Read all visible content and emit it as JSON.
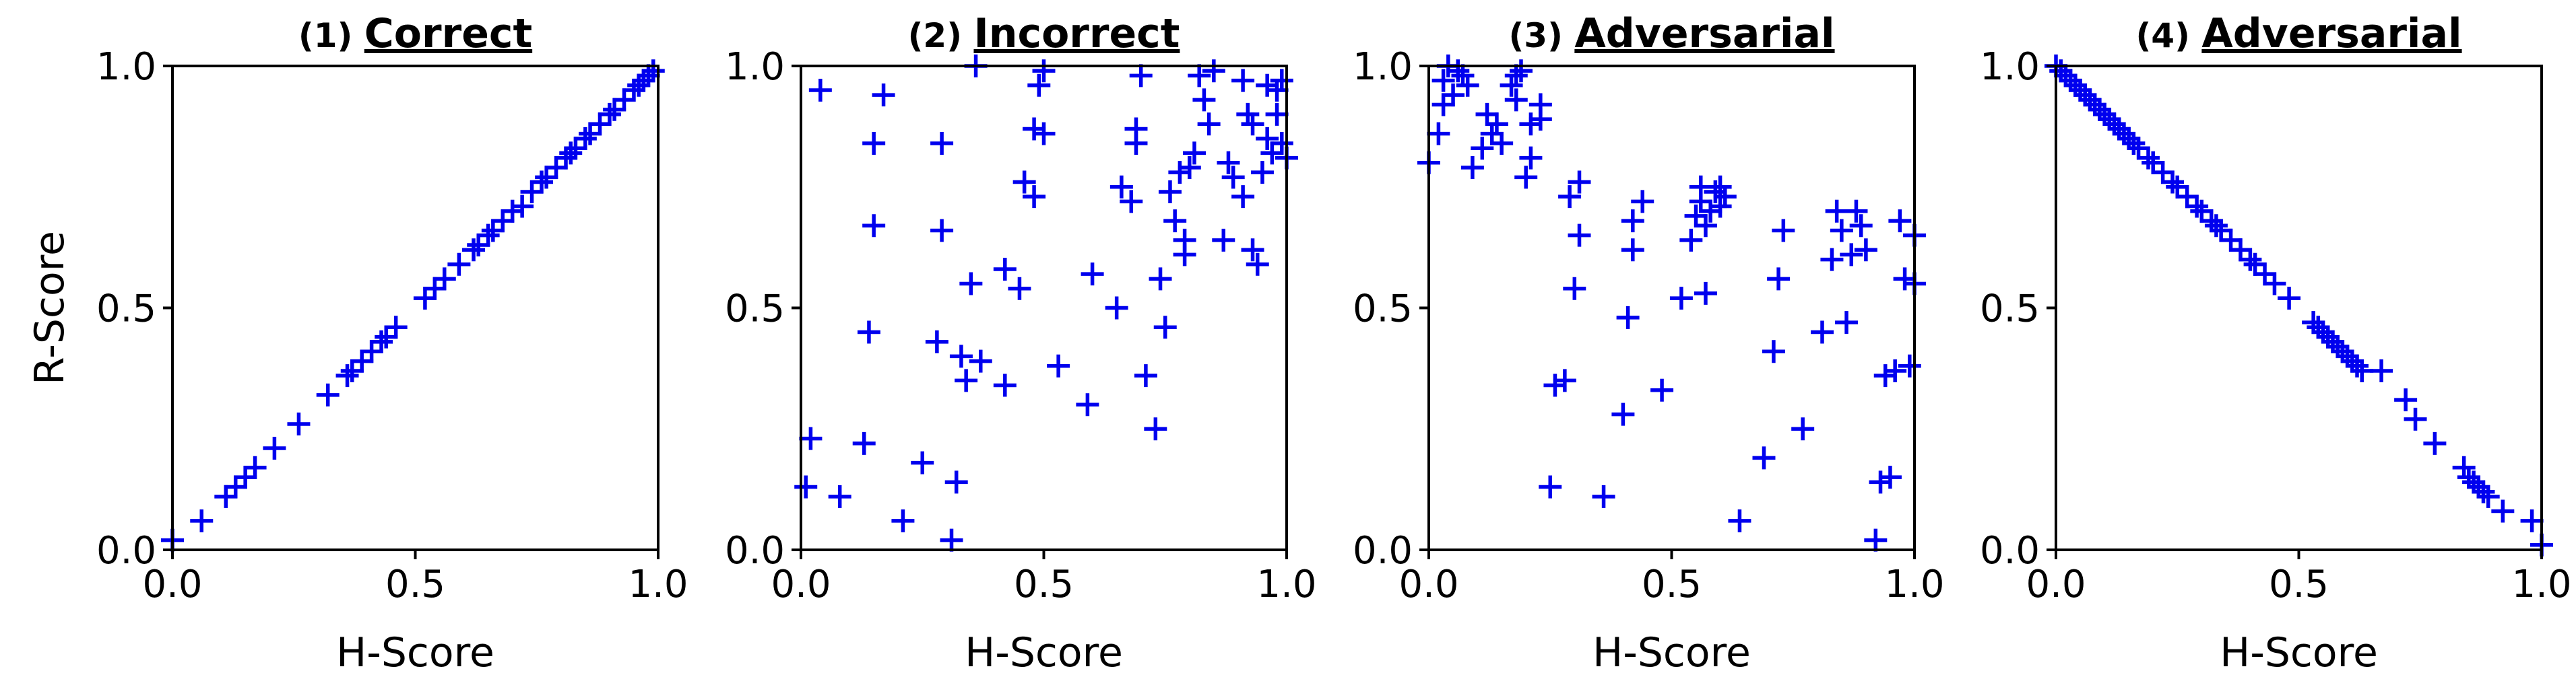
{
  "colors": {
    "marker": "#0000ee",
    "axes": "#000000",
    "background": "#ffffff"
  },
  "chart_data": [
    {
      "type": "scatter",
      "marker": "plus",
      "title_number": "(1)",
      "title": "Correct",
      "xlabel": "H-Score",
      "ylabel": "R-Score",
      "xlim": [
        0.0,
        1.0
      ],
      "ylim": [
        0.0,
        1.0
      ],
      "xticks": [
        "0.0",
        "0.5",
        "1.0"
      ],
      "yticks": [
        "0.0",
        "0.5",
        "1.0"
      ],
      "grid": false,
      "points": [
        [
          0.0,
          0.02
        ],
        [
          0.06,
          0.06
        ],
        [
          0.11,
          0.11
        ],
        [
          0.13,
          0.13
        ],
        [
          0.15,
          0.15
        ],
        [
          0.17,
          0.17
        ],
        [
          0.21,
          0.21
        ],
        [
          0.26,
          0.26
        ],
        [
          0.32,
          0.32
        ],
        [
          0.36,
          0.36
        ],
        [
          0.37,
          0.37
        ],
        [
          0.39,
          0.39
        ],
        [
          0.41,
          0.41
        ],
        [
          0.43,
          0.43
        ],
        [
          0.44,
          0.44
        ],
        [
          0.46,
          0.46
        ],
        [
          0.52,
          0.52
        ],
        [
          0.54,
          0.54
        ],
        [
          0.56,
          0.56
        ],
        [
          0.59,
          0.59
        ],
        [
          0.62,
          0.62
        ],
        [
          0.63,
          0.63
        ],
        [
          0.65,
          0.65
        ],
        [
          0.66,
          0.66
        ],
        [
          0.68,
          0.68
        ],
        [
          0.7,
          0.7
        ],
        [
          0.72,
          0.71
        ],
        [
          0.74,
          0.74
        ],
        [
          0.76,
          0.76
        ],
        [
          0.77,
          0.77
        ],
        [
          0.79,
          0.79
        ],
        [
          0.81,
          0.81
        ],
        [
          0.82,
          0.82
        ],
        [
          0.83,
          0.83
        ],
        [
          0.85,
          0.85
        ],
        [
          0.86,
          0.86
        ],
        [
          0.88,
          0.88
        ],
        [
          0.9,
          0.9
        ],
        [
          0.91,
          0.91
        ],
        [
          0.93,
          0.93
        ],
        [
          0.95,
          0.95
        ],
        [
          0.96,
          0.96
        ],
        [
          0.97,
          0.97
        ],
        [
          0.98,
          0.98
        ],
        [
          0.99,
          0.99
        ]
      ]
    },
    {
      "type": "scatter",
      "marker": "plus",
      "title_number": "(2)",
      "title": "Incorrect",
      "xlabel": "H-Score",
      "ylabel": "",
      "xlim": [
        0.0,
        1.0
      ],
      "ylim": [
        0.0,
        1.0
      ],
      "xticks": [
        "0.0",
        "0.5",
        "1.0"
      ],
      "yticks": [
        "0.0",
        "0.5",
        "1.0"
      ],
      "grid": false,
      "points": [
        [
          0.04,
          0.95
        ],
        [
          0.02,
          0.23
        ],
        [
          0.01,
          0.13
        ],
        [
          0.08,
          0.11
        ],
        [
          0.13,
          0.22
        ],
        [
          0.14,
          0.45
        ],
        [
          0.15,
          0.67
        ],
        [
          0.15,
          0.84
        ],
        [
          0.17,
          0.94
        ],
        [
          0.21,
          0.06
        ],
        [
          0.25,
          0.18
        ],
        [
          0.28,
          0.43
        ],
        [
          0.29,
          0.66
        ],
        [
          0.29,
          0.84
        ],
        [
          0.31,
          0.02
        ],
        [
          0.32,
          0.14
        ],
        [
          0.33,
          0.4
        ],
        [
          0.34,
          0.35
        ],
        [
          0.35,
          0.55
        ],
        [
          0.36,
          1.0
        ],
        [
          0.37,
          0.39
        ],
        [
          0.42,
          0.34
        ],
        [
          0.42,
          0.58
        ],
        [
          0.45,
          0.54
        ],
        [
          0.46,
          0.76
        ],
        [
          0.48,
          0.73
        ],
        [
          0.48,
          0.87
        ],
        [
          0.49,
          0.96
        ],
        [
          0.5,
          0.86
        ],
        [
          0.5,
          0.99
        ],
        [
          0.53,
          0.38
        ],
        [
          0.59,
          0.3
        ],
        [
          0.6,
          0.57
        ],
        [
          0.65,
          0.5
        ],
        [
          0.66,
          0.75
        ],
        [
          0.68,
          0.72
        ],
        [
          0.69,
          0.87
        ],
        [
          0.69,
          0.84
        ],
        [
          0.7,
          0.98
        ],
        [
          0.71,
          0.36
        ],
        [
          0.73,
          0.25
        ],
        [
          0.74,
          0.56
        ],
        [
          0.75,
          0.46
        ],
        [
          0.76,
          0.74
        ],
        [
          0.77,
          0.68
        ],
        [
          0.78,
          0.78
        ],
        [
          0.79,
          0.64
        ],
        [
          0.79,
          0.61
        ],
        [
          0.8,
          0.79
        ],
        [
          0.81,
          0.82
        ],
        [
          0.82,
          0.98
        ],
        [
          0.83,
          0.93
        ],
        [
          0.84,
          0.88
        ],
        [
          0.85,
          0.99
        ],
        [
          0.87,
          0.64
        ],
        [
          0.88,
          0.8
        ],
        [
          0.89,
          0.77
        ],
        [
          0.91,
          0.73
        ],
        [
          0.91,
          0.97
        ],
        [
          0.92,
          0.9
        ],
        [
          0.93,
          0.88
        ],
        [
          0.93,
          0.62
        ],
        [
          0.94,
          0.59
        ],
        [
          0.95,
          0.78
        ],
        [
          0.96,
          0.85
        ],
        [
          0.96,
          0.96
        ],
        [
          0.97,
          0.82
        ],
        [
          0.98,
          0.95
        ],
        [
          0.98,
          0.9
        ],
        [
          0.99,
          0.84
        ],
        [
          0.99,
          0.97
        ],
        [
          1.0,
          0.81
        ]
      ]
    },
    {
      "type": "scatter",
      "marker": "plus",
      "title_number": "(3)",
      "title": "Adversarial",
      "xlabel": "H-Score",
      "ylabel": "",
      "xlim": [
        0.0,
        1.0
      ],
      "ylim": [
        0.0,
        1.0
      ],
      "xticks": [
        "0.0",
        "0.5",
        "1.0"
      ],
      "yticks": [
        "0.0",
        "0.5",
        "1.0"
      ],
      "grid": false,
      "points": [
        [
          0.0,
          0.8
        ],
        [
          0.02,
          0.86
        ],
        [
          0.03,
          0.92
        ],
        [
          0.03,
          0.97
        ],
        [
          0.04,
          1.0
        ],
        [
          0.05,
          0.94
        ],
        [
          0.06,
          0.99
        ],
        [
          0.07,
          0.98
        ],
        [
          0.08,
          0.96
        ],
        [
          0.09,
          0.79
        ],
        [
          0.11,
          0.83
        ],
        [
          0.12,
          0.9
        ],
        [
          0.13,
          0.86
        ],
        [
          0.14,
          0.88
        ],
        [
          0.15,
          0.84
        ],
        [
          0.17,
          0.96
        ],
        [
          0.18,
          0.98
        ],
        [
          0.18,
          0.93
        ],
        [
          0.19,
          0.99
        ],
        [
          0.2,
          0.77
        ],
        [
          0.21,
          0.81
        ],
        [
          0.21,
          0.88
        ],
        [
          0.23,
          0.89
        ],
        [
          0.23,
          0.92
        ],
        [
          0.25,
          0.13
        ],
        [
          0.26,
          0.34
        ],
        [
          0.28,
          0.35
        ],
        [
          0.29,
          0.73
        ],
        [
          0.3,
          0.54
        ],
        [
          0.31,
          0.76
        ],
        [
          0.31,
          0.65
        ],
        [
          0.36,
          0.11
        ],
        [
          0.4,
          0.28
        ],
        [
          0.41,
          0.48
        ],
        [
          0.42,
          0.62
        ],
        [
          0.42,
          0.68
        ],
        [
          0.44,
          0.72
        ],
        [
          0.48,
          0.33
        ],
        [
          0.52,
          0.52
        ],
        [
          0.54,
          0.64
        ],
        [
          0.55,
          0.69
        ],
        [
          0.56,
          0.72
        ],
        [
          0.56,
          0.75
        ],
        [
          0.57,
          0.53
        ],
        [
          0.57,
          0.67
        ],
        [
          0.58,
          0.7
        ],
        [
          0.59,
          0.74
        ],
        [
          0.6,
          0.71
        ],
        [
          0.6,
          0.75
        ],
        [
          0.61,
          0.73
        ],
        [
          0.64,
          0.06
        ],
        [
          0.69,
          0.19
        ],
        [
          0.71,
          0.41
        ],
        [
          0.72,
          0.56
        ],
        [
          0.73,
          0.66
        ],
        [
          0.77,
          0.25
        ],
        [
          0.81,
          0.45
        ],
        [
          0.83,
          0.6
        ],
        [
          0.84,
          0.7
        ],
        [
          0.85,
          0.66
        ],
        [
          0.86,
          0.47
        ],
        [
          0.87,
          0.61
        ],
        [
          0.88,
          0.7
        ],
        [
          0.89,
          0.67
        ],
        [
          0.9,
          0.62
        ],
        [
          0.92,
          0.02
        ],
        [
          0.93,
          0.14
        ],
        [
          0.94,
          0.36
        ],
        [
          0.95,
          0.15
        ],
        [
          0.96,
          0.37
        ],
        [
          0.97,
          0.68
        ],
        [
          0.98,
          0.56
        ],
        [
          0.99,
          0.38
        ],
        [
          1.0,
          0.55
        ],
        [
          1.0,
          0.65
        ]
      ]
    },
    {
      "type": "scatter",
      "marker": "plus",
      "title_number": "(4)",
      "title": "Adversarial",
      "xlabel": "H-Score",
      "ylabel": "",
      "xlim": [
        0.0,
        1.0
      ],
      "ylim": [
        0.0,
        1.0
      ],
      "xticks": [
        "0.0",
        "0.5",
        "1.0"
      ],
      "yticks": [
        "0.0",
        "0.5",
        "1.0"
      ],
      "grid": false,
      "points": [
        [
          0.0,
          1.0
        ],
        [
          0.01,
          0.99
        ],
        [
          0.02,
          0.98
        ],
        [
          0.03,
          0.97
        ],
        [
          0.04,
          0.96
        ],
        [
          0.05,
          0.95
        ],
        [
          0.06,
          0.94
        ],
        [
          0.07,
          0.93
        ],
        [
          0.08,
          0.92
        ],
        [
          0.09,
          0.91
        ],
        [
          0.1,
          0.9
        ],
        [
          0.11,
          0.89
        ],
        [
          0.12,
          0.88
        ],
        [
          0.13,
          0.87
        ],
        [
          0.14,
          0.86
        ],
        [
          0.15,
          0.85
        ],
        [
          0.16,
          0.84
        ],
        [
          0.17,
          0.83
        ],
        [
          0.19,
          0.81
        ],
        [
          0.2,
          0.8
        ],
        [
          0.22,
          0.78
        ],
        [
          0.24,
          0.76
        ],
        [
          0.25,
          0.75
        ],
        [
          0.27,
          0.73
        ],
        [
          0.29,
          0.71
        ],
        [
          0.3,
          0.7
        ],
        [
          0.32,
          0.68
        ],
        [
          0.33,
          0.67
        ],
        [
          0.34,
          0.66
        ],
        [
          0.36,
          0.64
        ],
        [
          0.38,
          0.62
        ],
        [
          0.4,
          0.6
        ],
        [
          0.41,
          0.59
        ],
        [
          0.43,
          0.57
        ],
        [
          0.45,
          0.55
        ],
        [
          0.48,
          0.52
        ],
        [
          0.53,
          0.47
        ],
        [
          0.54,
          0.46
        ],
        [
          0.55,
          0.45
        ],
        [
          0.56,
          0.44
        ],
        [
          0.57,
          0.43
        ],
        [
          0.58,
          0.42
        ],
        [
          0.59,
          0.41
        ],
        [
          0.6,
          0.4
        ],
        [
          0.61,
          0.39
        ],
        [
          0.62,
          0.38
        ],
        [
          0.63,
          0.37
        ],
        [
          0.67,
          0.37
        ],
        [
          0.72,
          0.31
        ],
        [
          0.74,
          0.27
        ],
        [
          0.78,
          0.22
        ],
        [
          0.84,
          0.17
        ],
        [
          0.85,
          0.15
        ],
        [
          0.86,
          0.14
        ],
        [
          0.87,
          0.13
        ],
        [
          0.88,
          0.12
        ],
        [
          0.89,
          0.11
        ],
        [
          0.92,
          0.08
        ],
        [
          0.98,
          0.06
        ],
        [
          1.0,
          0.01
        ]
      ]
    }
  ]
}
